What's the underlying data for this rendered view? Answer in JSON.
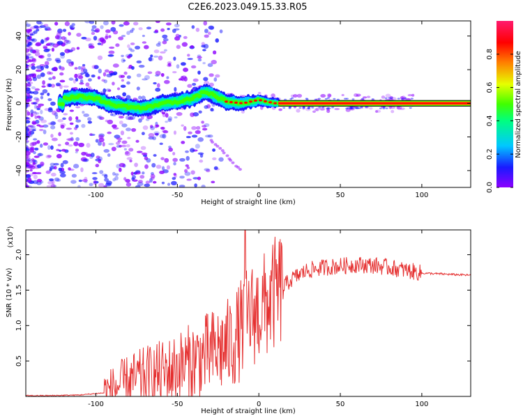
{
  "title": "C2E6.2023.049.15.33.R05",
  "chart_data": [
    {
      "type": "heatmap",
      "xlabel": "Height of straight line (km)",
      "ylabel": "Frequency (Hz)",
      "xlim": [
        -143,
        130
      ],
      "ylim": [
        -50,
        49
      ],
      "xticks": [
        -100,
        -50,
        0,
        50,
        100
      ],
      "yticks": [
        -40,
        -20,
        0,
        20,
        40
      ],
      "colorbar": {
        "label": "Normalized spectral amplitude",
        "range": [
          0.0,
          1.0
        ],
        "ticks": [
          "0.0",
          "0.2",
          "0.4",
          "0.6",
          "0.8"
        ],
        "colormap": [
          "#8c00ff",
          "#1a1aff",
          "#00c8ff",
          "#00ff80",
          "#40ff00",
          "#e6ff00",
          "#ff7f00",
          "#ff0000",
          "#ff1a6e"
        ]
      },
      "ridge_frequency_hz": [
        {
          "x": -120,
          "y": 3
        },
        {
          "x": -110,
          "y": 4
        },
        {
          "x": -100,
          "y": 3
        },
        {
          "x": -90,
          "y": -1
        },
        {
          "x": -80,
          "y": -2
        },
        {
          "x": -70,
          "y": -3
        },
        {
          "x": -60,
          "y": 0
        },
        {
          "x": -50,
          "y": 1
        },
        {
          "x": -40,
          "y": 3
        },
        {
          "x": -33,
          "y": 7
        },
        {
          "x": -28,
          "y": 5
        },
        {
          "x": -20,
          "y": 1
        },
        {
          "x": -10,
          "y": 0
        },
        {
          "x": 0,
          "y": 2
        },
        {
          "x": 10,
          "y": 0
        },
        {
          "x": 130,
          "y": 0
        }
      ]
    },
    {
      "type": "line",
      "xlabel": "Height of straight line (km)",
      "ylabel": "SNR (10 * v/v)",
      "y_scale_label": "(x10",
      "y_scale_exponent": "4",
      "xlim": [
        -143,
        130
      ],
      "ylim": [
        0.0,
        2.35
      ],
      "xticks": [
        -100,
        -50,
        0,
        50,
        100
      ],
      "yticks": [
        "0.5",
        "1.0",
        "1.5",
        "2.0"
      ],
      "color": "#e53030",
      "series": [
        {
          "x": [
            -143,
            -130,
            -110,
            -95,
            -88,
            -82,
            -75,
            -68,
            -62,
            -55,
            -50,
            -45,
            -40,
            -35,
            -30,
            -25,
            -20,
            -15,
            -12,
            -10,
            -8,
            -5,
            0,
            5,
            10,
            15,
            20,
            25,
            30,
            40,
            50,
            60,
            70,
            80,
            90,
            100,
            110,
            120,
            130
          ],
          "y": [
            0.01,
            0.01,
            0.02,
            0.05,
            0.12,
            0.2,
            0.25,
            0.3,
            0.32,
            0.35,
            0.4,
            0.45,
            0.5,
            0.55,
            0.6,
            0.65,
            0.7,
            0.8,
            0.9,
            1.0,
            1.1,
            1.15,
            1.2,
            1.3,
            1.45,
            1.55,
            1.65,
            1.72,
            1.78,
            1.82,
            1.84,
            1.86,
            1.85,
            1.82,
            1.78,
            1.74,
            1.73,
            1.72,
            1.71
          ]
        }
      ]
    }
  ]
}
